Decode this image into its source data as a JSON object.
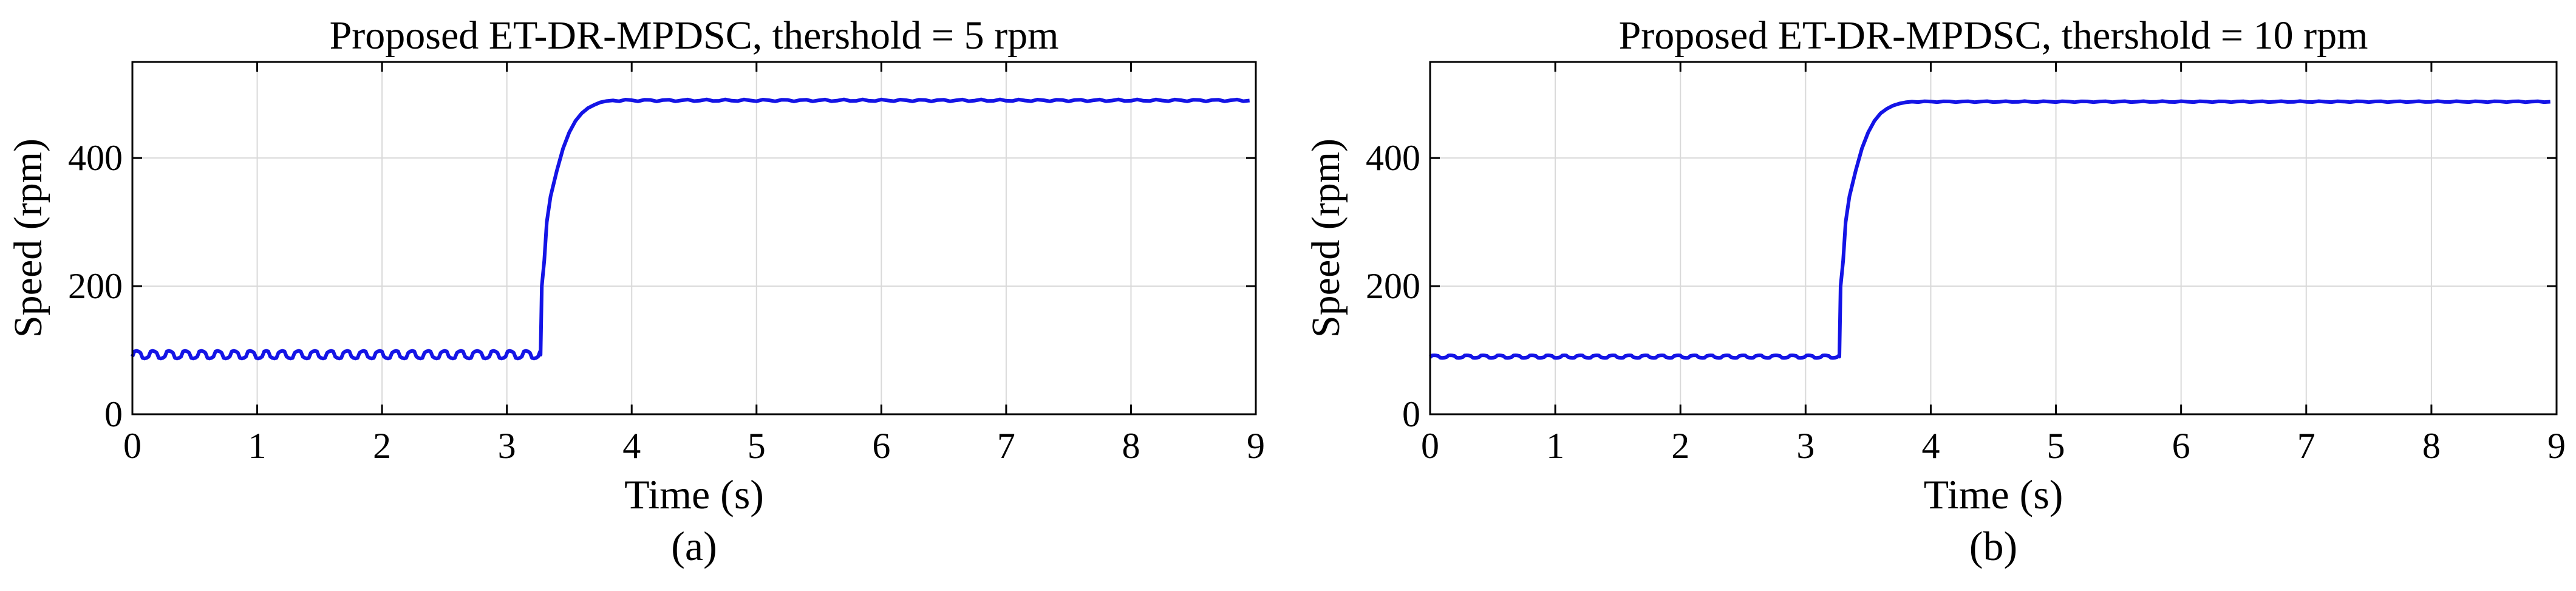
{
  "chart_data": [
    {
      "type": "line",
      "title": "Proposed ET-DR-MPDSC, thershold = 5 rpm",
      "xlabel": "Time (s)",
      "ylabel": "Speed (rpm)",
      "caption": "(a)",
      "xlim": [
        0,
        9
      ],
      "ylim": [
        0,
        550
      ],
      "xticks": [
        0,
        1,
        2,
        3,
        4,
        5,
        6,
        7,
        8,
        9
      ],
      "yticks": [
        0,
        200,
        400
      ],
      "grid": true,
      "line_color": "#1414e6",
      "series": [
        {
          "ripple": 12,
          "x": [
            0,
            3.27,
            3.28,
            3.3,
            3.32,
            3.35,
            3.4,
            3.45,
            3.5,
            3.55,
            3.6,
            3.65,
            3.7,
            3.75,
            3.8,
            3.85,
            3.9,
            4.0,
            5.0,
            6.0,
            7.0,
            8.0,
            9.0
          ],
          "y": [
            93,
            93,
            200,
            240,
            300,
            340,
            380,
            415,
            440,
            458,
            470,
            478,
            483,
            487,
            489,
            490,
            490,
            490,
            490,
            490,
            490,
            490,
            490
          ]
        }
      ]
    },
    {
      "type": "line",
      "title": "Proposed ET-DR-MPDSC, thershold = 10 rpm",
      "xlabel": "Time (s)",
      "ylabel": "Speed (rpm)",
      "caption": "(b)",
      "xlim": [
        0,
        9
      ],
      "ylim": [
        0,
        550
      ],
      "xticks": [
        0,
        1,
        2,
        3,
        4,
        5,
        6,
        7,
        8,
        9
      ],
      "yticks": [
        0,
        200,
        400
      ],
      "grid": true,
      "line_color": "#1414e6",
      "series": [
        {
          "ripple": 4,
          "x": [
            0,
            3.27,
            3.28,
            3.3,
            3.32,
            3.35,
            3.4,
            3.45,
            3.5,
            3.55,
            3.6,
            3.65,
            3.7,
            3.75,
            3.8,
            3.85,
            3.9,
            4.0,
            5.0,
            6.0,
            7.0,
            8.0,
            9.0
          ],
          "y": [
            90,
            90,
            200,
            240,
            300,
            340,
            380,
            415,
            440,
            458,
            470,
            477,
            482,
            485,
            487,
            488,
            488,
            488,
            488,
            488,
            488,
            488,
            488
          ]
        }
      ]
    }
  ]
}
